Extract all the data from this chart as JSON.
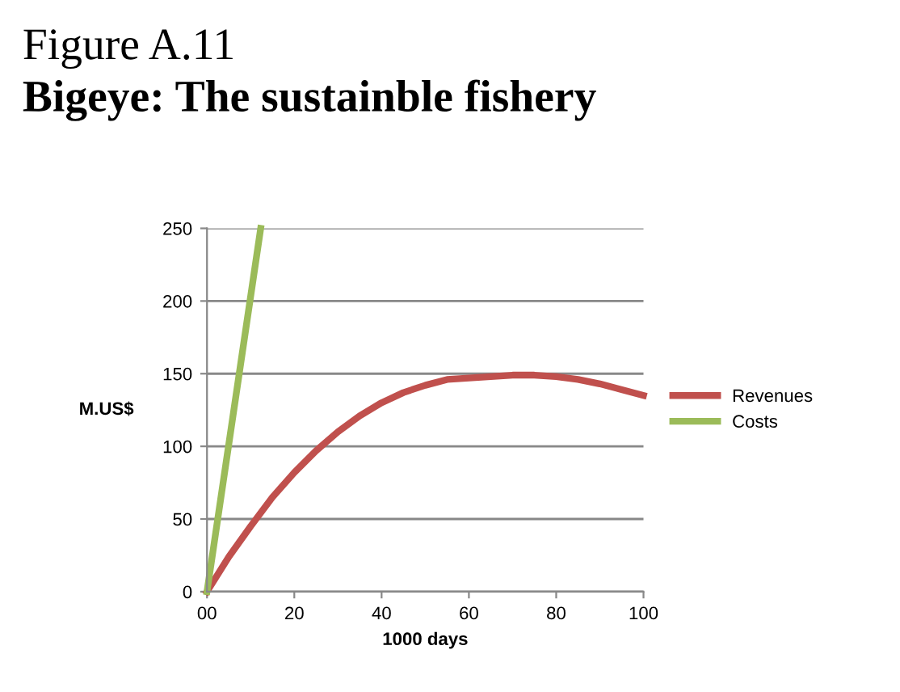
{
  "chart_data": {
    "type": "line",
    "title": "Figure A.11",
    "subtitle": "Bigeye: The sustainble fishery",
    "xlabel": "1000 days",
    "ylabel": "M.US$",
    "xlim": [
      0,
      100
    ],
    "xticks": [
      {
        "value": 0,
        "label": "00"
      },
      20,
      40,
      60,
      80,
      100
    ],
    "ylim": [
      0,
      250
    ],
    "yticks": [
      0,
      50,
      100,
      150,
      200,
      250
    ],
    "grid": "y",
    "legend": "right",
    "marker": "none",
    "line_style": "solid",
    "series": [
      {
        "name": "Revenues",
        "color": "#c0504d",
        "x": [
          0,
          5,
          10,
          15,
          20,
          25,
          30,
          35,
          40,
          45,
          50,
          55,
          60,
          65,
          70,
          75,
          80,
          85,
          90,
          95,
          100
        ],
        "values": [
          0,
          24,
          45,
          65,
          82,
          97,
          110,
          121,
          130,
          137,
          142,
          146,
          147,
          148,
          149,
          149,
          148,
          146,
          143,
          139,
          135
        ]
      },
      {
        "name": "Costs",
        "color": "#9bbb59",
        "x": [
          0,
          12.3
        ],
        "values": [
          0,
          250
        ]
      }
    ]
  }
}
